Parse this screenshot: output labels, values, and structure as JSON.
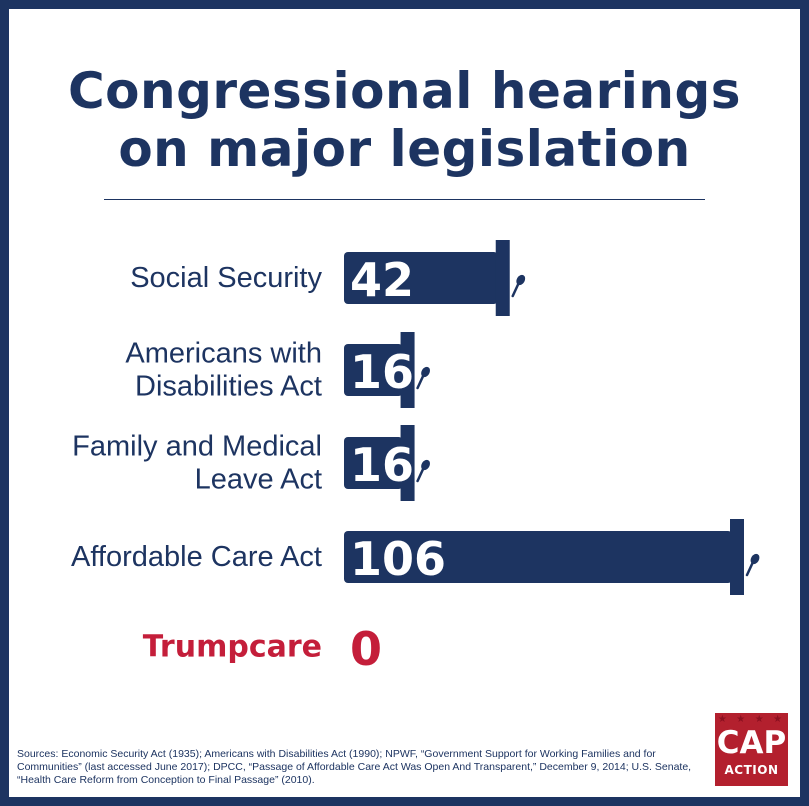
{
  "colors": {
    "navy": "#1d3461",
    "red": "#c41e3a",
    "white": "#ffffff"
  },
  "header": {
    "title": "Congressional hearings on major legislation"
  },
  "chart_data": {
    "type": "bar",
    "title": "Congressional hearings on major legislation",
    "orientation": "horizontal",
    "categories": [
      [
        "Social Security"
      ],
      [
        "Americans with",
        "Disabilities Act"
      ],
      [
        "Family and Medical",
        "Leave Act"
      ],
      [
        "Affordable Care Act"
      ],
      [
        "Trumpcare"
      ]
    ],
    "values": [
      42,
      16,
      16,
      106,
      0
    ],
    "value_labels": [
      "42",
      "16",
      "16",
      "106",
      "0"
    ],
    "highlight": [
      false,
      false,
      false,
      false,
      true
    ],
    "xlim": [
      0,
      106
    ],
    "grid": false,
    "legend": "none"
  },
  "footer": {
    "sources": "Sources: Economic Security Act (1935); Americans with Disabilities Act (1990); NPWF, “Government Support for Working Families and for Communities” (last accessed June 2017); DPCC, “Passage of Affordable Care Act Was Open And Transparent,” December 9, 2014; U.S. Senate, “Health Care Reform from Conception to Final Passage” (2010)."
  },
  "logo": {
    "line1": "CAP",
    "line2": "ACTION",
    "stars": "★ ★ ★ ★"
  }
}
